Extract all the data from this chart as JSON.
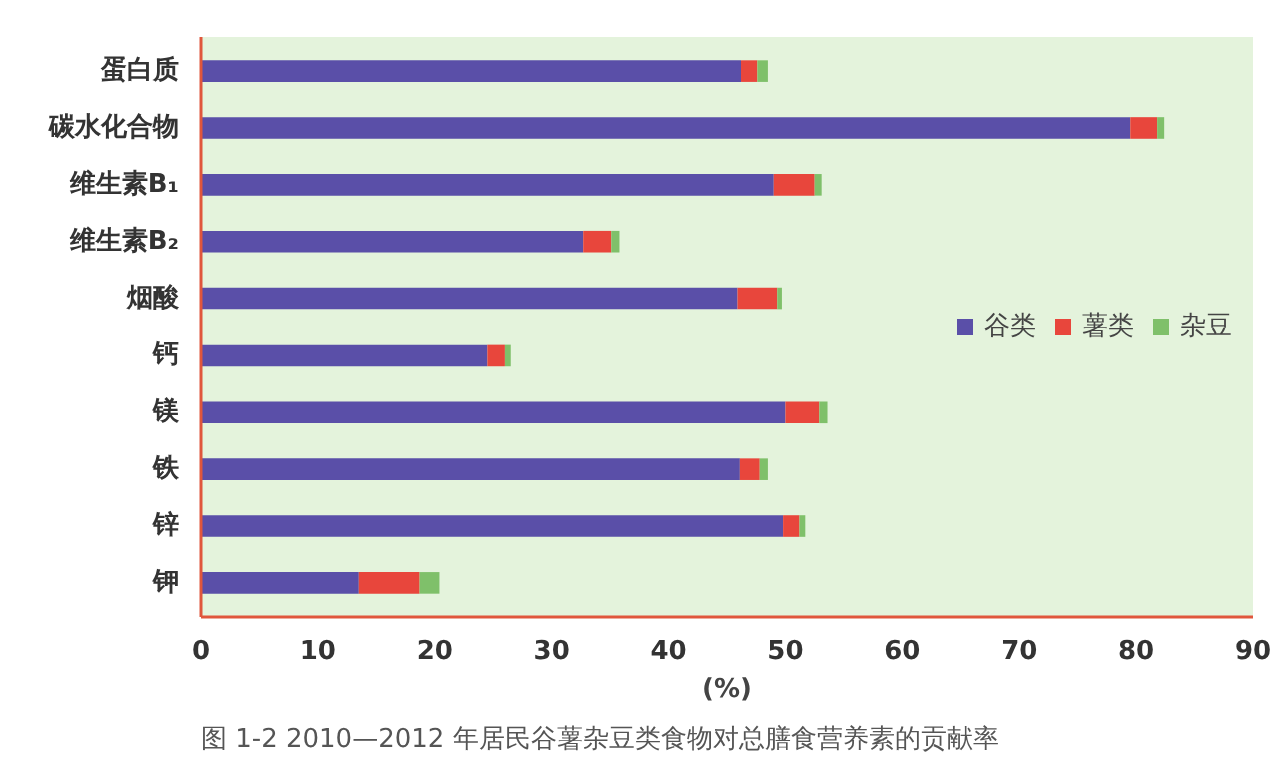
{
  "chart_data": {
    "type": "bar",
    "orientation": "horizontal",
    "stacked": true,
    "categories": [
      "蛋白质",
      "碳水化合物",
      "维生素B₁",
      "维生素B₂",
      "烟酸",
      "钙",
      "镁",
      "铁",
      "锌",
      "钾"
    ],
    "series": [
      {
        "name": "谷类",
        "color": "#5a4fa8",
        "values": [
          46.2,
          79.5,
          49.0,
          32.7,
          45.9,
          24.5,
          50.0,
          46.1,
          49.8,
          13.5
        ]
      },
      {
        "name": "薯类",
        "color": "#e8463c",
        "values": [
          1.4,
          2.3,
          3.5,
          2.4,
          3.4,
          1.5,
          2.9,
          1.7,
          1.4,
          5.2
        ]
      },
      {
        "name": "杂豆",
        "color": "#7fc06a",
        "values": [
          0.9,
          0.6,
          0.6,
          0.7,
          0.4,
          0.5,
          0.7,
          0.7,
          0.5,
          1.7
        ]
      }
    ],
    "xlim": [
      0,
      90
    ],
    "xticks": [
      0,
      10,
      20,
      30,
      40,
      50,
      60,
      70,
      80,
      90
    ],
    "xlabel": "(%)",
    "legend": "right",
    "grid": false,
    "annotations": [
      "图 1-2 2010—2012 年居民谷薯杂豆类食物对总膳食营养素的贡献率"
    ]
  }
}
